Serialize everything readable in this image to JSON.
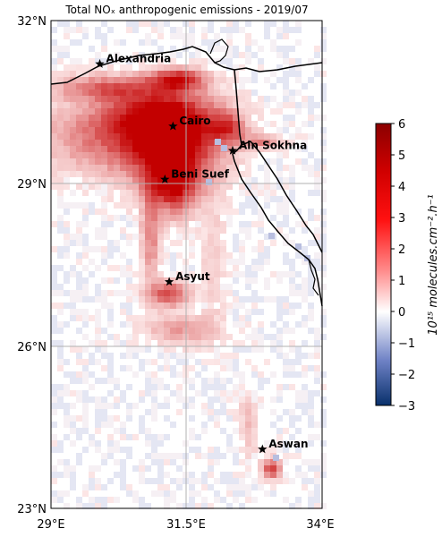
{
  "title": "Total NOₓ anthropogenic emissions - 2019/07",
  "map": {
    "lon_range": [
      29,
      34
    ],
    "lat_range": [
      23,
      32
    ],
    "x_ticks": [
      "29°E",
      "31.5°E",
      "34°E"
    ],
    "y_ticks": [
      "32°N",
      "29°N",
      "26°N",
      "23°N"
    ],
    "gridlines": true,
    "coastline_color": "#000000"
  },
  "cities": [
    {
      "name": "Alexandria",
      "lon": 29.9,
      "lat": 31.2
    },
    {
      "name": "Cairo",
      "lon": 31.25,
      "lat": 30.05
    },
    {
      "name": "Ain Sokhna",
      "lon": 32.35,
      "lat": 29.6
    },
    {
      "name": "Beni Suef",
      "lon": 31.1,
      "lat": 29.07
    },
    {
      "name": "Asyut",
      "lon": 31.18,
      "lat": 27.18
    },
    {
      "name": "Aswan",
      "lon": 32.9,
      "lat": 24.09
    }
  ],
  "colorbar": {
    "min": -3,
    "max": 6,
    "ticks": [
      "6",
      "5",
      "4",
      "3",
      "2",
      "1",
      "0",
      "−1",
      "−2",
      "−3"
    ],
    "label": "10¹⁵ molecules.cm⁻².h⁻¹",
    "colors": {
      "low": "#08306b",
      "mid": "#ffffff",
      "high": "#8b0000"
    }
  }
}
